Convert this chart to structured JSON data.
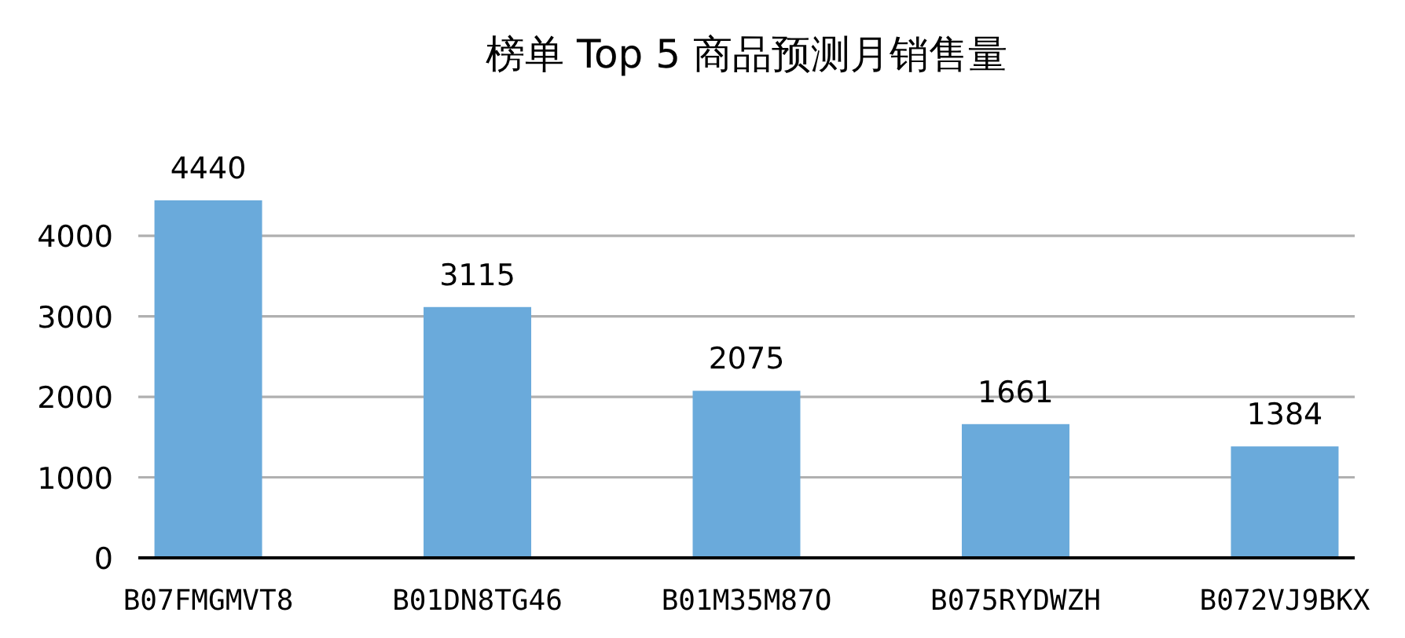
{
  "chart_data": {
    "type": "bar",
    "title": "榜单 Top 5 商品预测月销售量",
    "categories": [
      "B07FMGMVT8",
      "B01DN8TG46",
      "B01M35M87O",
      "B075RYDWZH",
      "B072VJ9BKX"
    ],
    "values": [
      4440,
      3115,
      2075,
      1661,
      1384
    ],
    "color": "#6aaadb",
    "ylim": [
      0,
      4440
    ],
    "yticks": [
      0,
      1000,
      2000,
      3000,
      4000
    ],
    "grid": "y",
    "data_labels": true
  }
}
